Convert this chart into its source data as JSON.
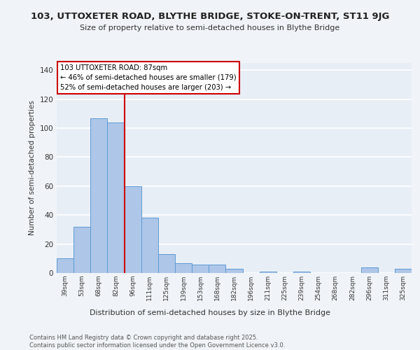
{
  "title_line1": "103, UTTOXETER ROAD, BLYTHE BRIDGE, STOKE-ON-TRENT, ST11 9JG",
  "title_line2": "Size of property relative to semi-detached houses in Blythe Bridge",
  "xlabel": "Distribution of semi-detached houses by size in Blythe Bridge",
  "ylabel": "Number of semi-detached properties",
  "categories": [
    "39sqm",
    "53sqm",
    "68sqm",
    "82sqm",
    "96sqm",
    "111sqm",
    "125sqm",
    "139sqm",
    "153sqm",
    "168sqm",
    "182sqm",
    "196sqm",
    "211sqm",
    "225sqm",
    "239sqm",
    "254sqm",
    "268sqm",
    "282sqm",
    "296sqm",
    "311sqm",
    "325sqm"
  ],
  "values": [
    10,
    32,
    107,
    104,
    60,
    38,
    13,
    7,
    6,
    6,
    3,
    0,
    1,
    0,
    1,
    0,
    0,
    0,
    4,
    0,
    3
  ],
  "bar_color": "#aec6e8",
  "bar_edge_color": "#5b9bd5",
  "annotation_text_line1": "103 UTTOXETER ROAD: 87sqm",
  "annotation_text_line2": "← 46% of semi-detached houses are smaller (179)",
  "annotation_text_line3": "52% of semi-detached houses are larger (203) →",
  "annotation_box_color": "#ffffff",
  "annotation_box_edge": "#cc0000",
  "vline_color": "#cc0000",
  "vline_x_index": 3.5,
  "ylim": [
    0,
    145
  ],
  "yticks": [
    0,
    20,
    40,
    60,
    80,
    100,
    120,
    140
  ],
  "bg_color": "#e8eef5",
  "grid_color": "#ffffff",
  "fig_bg_color": "#f0f4f8",
  "footer": "Contains HM Land Registry data © Crown copyright and database right 2025.\nContains public sector information licensed under the Open Government Licence v3.0."
}
